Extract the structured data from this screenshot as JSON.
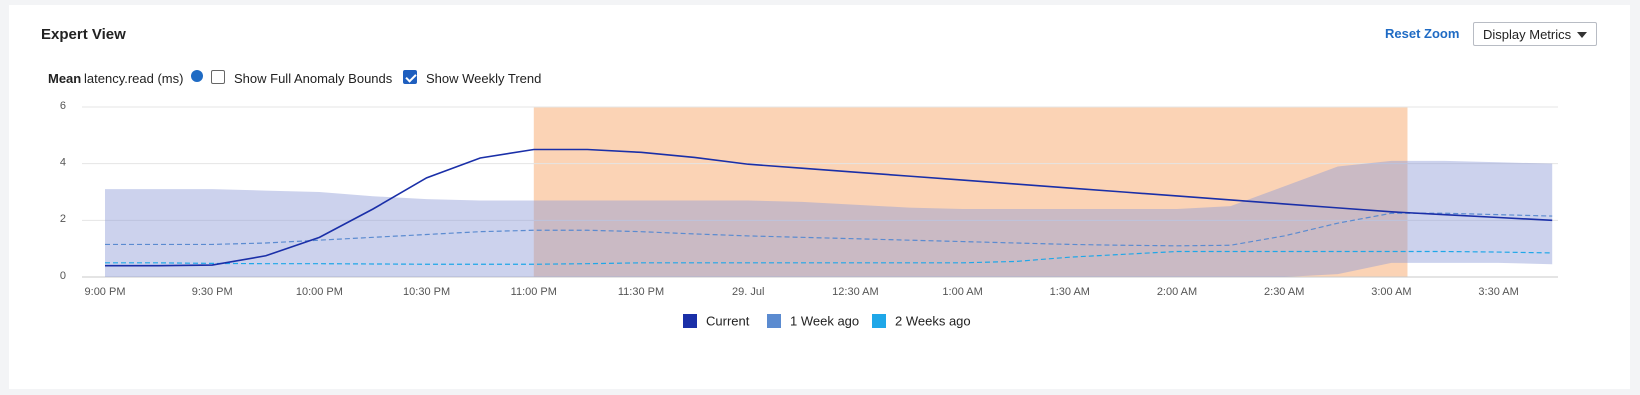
{
  "header": {
    "title": "Expert View",
    "reset_zoom": "Reset Zoom",
    "display_metrics": "Display Metrics"
  },
  "controls": {
    "mean": "Mean",
    "metric": "latency.read (ms)",
    "full_bounds": {
      "label": "Show Full Anomaly Bounds",
      "checked": false
    },
    "weekly_trend": {
      "label": "Show Weekly Trend",
      "checked": true
    }
  },
  "chart_data": {
    "type": "line",
    "categories": [
      "9:00 PM",
      null,
      "9:30 PM",
      null,
      "10:00 PM",
      null,
      "10:30 PM",
      null,
      "11:00 PM",
      null,
      "11:30 PM",
      null,
      "29. Jul",
      null,
      "12:30 AM",
      null,
      "1:00 AM",
      null,
      "1:30 AM",
      null,
      "2:00 AM",
      null,
      "2:30 AM",
      null,
      "3:00 AM",
      null,
      "3:30 AM",
      null
    ],
    "ylim": [
      0,
      6
    ],
    "yticks": [
      0,
      2,
      4,
      6
    ],
    "grid": true,
    "series": [
      {
        "name": "Current",
        "color": "#1a2fa8",
        "dash": false,
        "values": [
          0.4,
          0.4,
          0.42,
          0.75,
          1.4,
          2.4,
          3.5,
          4.2,
          4.5,
          4.5,
          4.4,
          4.22,
          3.98,
          3.84,
          3.7,
          3.56,
          3.42,
          3.28,
          3.14,
          3.0,
          2.86,
          2.72,
          2.58,
          2.44,
          2.3,
          2.2,
          2.1,
          2.0
        ]
      },
      {
        "name": "1 Week ago",
        "color": "#5b8bd0",
        "dash": true,
        "values": [
          1.15,
          1.15,
          1.15,
          1.2,
          1.3,
          1.4,
          1.5,
          1.6,
          1.65,
          1.65,
          1.6,
          1.52,
          1.45,
          1.4,
          1.35,
          1.3,
          1.25,
          1.2,
          1.15,
          1.12,
          1.1,
          1.12,
          1.45,
          1.9,
          2.25,
          2.25,
          2.2,
          2.15
        ]
      },
      {
        "name": "2 Weeks ago",
        "color": "#1fa7e8",
        "dash": true,
        "values": [
          0.5,
          0.5,
          0.48,
          0.47,
          0.47,
          0.46,
          0.45,
          0.45,
          0.45,
          0.47,
          0.5,
          0.5,
          0.5,
          0.5,
          0.5,
          0.5,
          0.5,
          0.55,
          0.7,
          0.8,
          0.9,
          0.9,
          0.9,
          0.9,
          0.9,
          0.9,
          0.88,
          0.85
        ]
      }
    ],
    "band": {
      "color": "#8f9bd8",
      "upper": [
        3.1,
        3.1,
        3.1,
        3.05,
        3.0,
        2.85,
        2.75,
        2.7,
        2.7,
        2.7,
        2.7,
        2.7,
        2.7,
        2.65,
        2.55,
        2.45,
        2.4,
        2.4,
        2.4,
        2.4,
        2.4,
        2.5,
        3.2,
        3.9,
        4.1,
        4.1,
        4.05,
        4.0
      ],
      "lower": [
        0,
        0,
        0,
        0,
        0,
        0,
        0,
        0,
        0,
        0,
        0,
        0,
        0,
        0,
        0,
        0,
        0,
        0,
        0,
        0,
        0,
        0,
        0,
        0.1,
        0.5,
        0.5,
        0.5,
        0.45
      ]
    },
    "highlight": {
      "color": "#fbd3b5",
      "range": [
        8,
        24.3
      ]
    }
  }
}
